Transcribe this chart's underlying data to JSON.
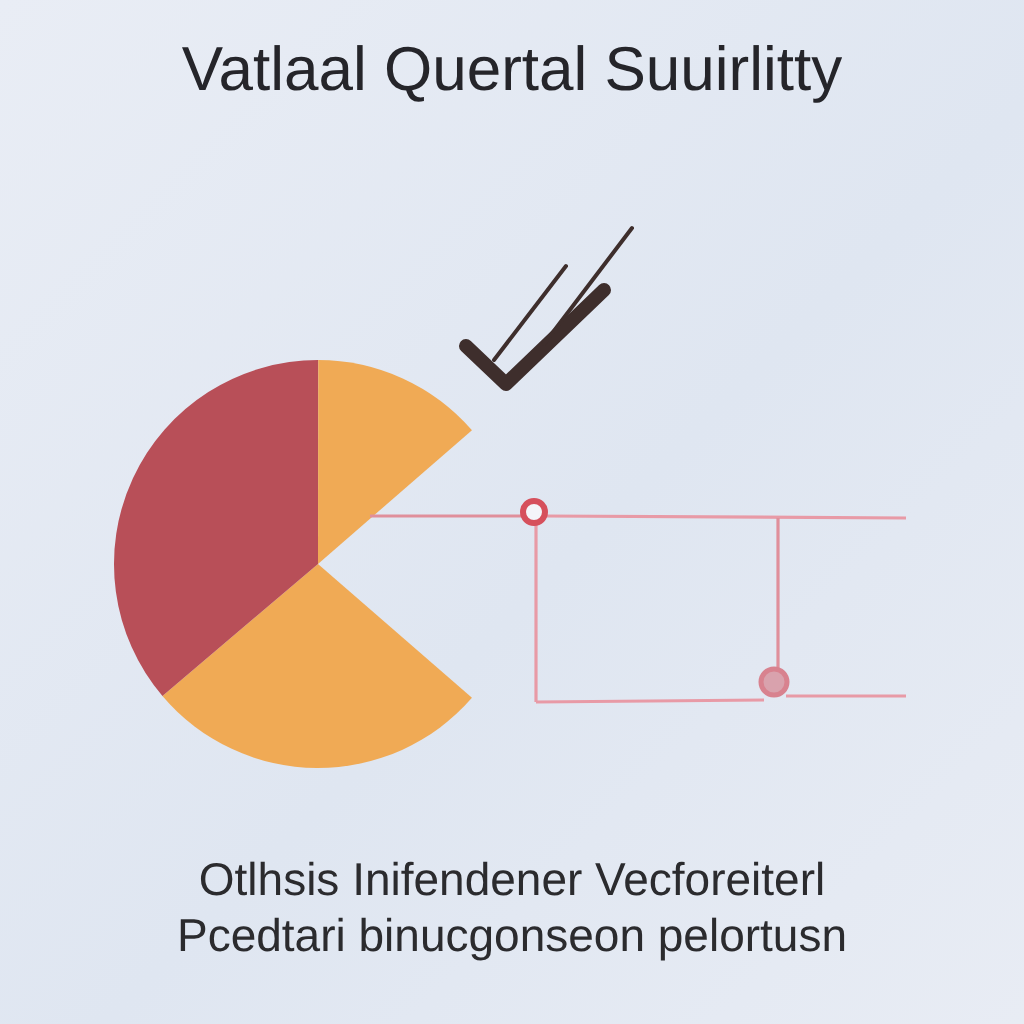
{
  "chart_data": {
    "type": "pie",
    "title": "Vatlaal Quertal Suuirlitty",
    "categories": [
      null,
      null,
      null
    ],
    "values": [
      35.5,
      46.9,
      17.6
    ],
    "colors": [
      "#f0aa55",
      "#b84f58",
      "#f0aa55"
    ],
    "annotations": [
      "Otlhsis Inifendener Vecforeiterl",
      "Pcedtari binucgonseon pelortusn"
    ]
  }
}
